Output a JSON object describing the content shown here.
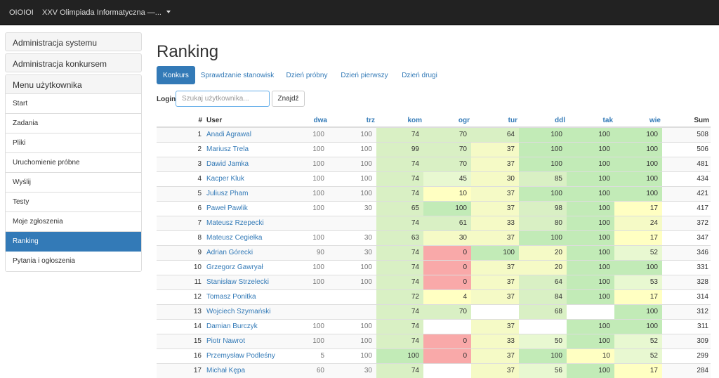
{
  "navbar": {
    "brand": "OIOIOI",
    "contest": "XXV Olimpiada Informatyczna —..."
  },
  "sidebar": {
    "admin_system": "Administracja systemu",
    "admin_contest": "Administracja konkursem",
    "user_menu_title": "Menu użytkownika",
    "items": [
      "Start",
      "Zadania",
      "Pliki",
      "Uruchomienie próbne",
      "Wyślij",
      "Testy",
      "Moje zgłoszenia",
      "Ranking",
      "Pytania i ogłoszenia"
    ],
    "active": "Ranking"
  },
  "main": {
    "title": "Ranking",
    "tabs": [
      "Konkurs",
      "Sprawdzanie stanowisk",
      "Dzień próbny",
      "Dzień pierwszy",
      "Dzień drugi"
    ],
    "active_tab": "Konkurs",
    "search": {
      "label": "Login",
      "placeholder": "Szukaj użytkownika...",
      "button": "Znajdź"
    }
  },
  "ranking": {
    "columns": [
      "#",
      "User",
      "dwa",
      "trz",
      "kom",
      "ogr",
      "tur",
      "ddl",
      "tak",
      "wie",
      "Sum"
    ],
    "rows": [
      {
        "pos": "1",
        "user": "Anadi Agrawal",
        "dwa": "100",
        "trz": "100",
        "kom": "74",
        "ogr": "70",
        "tur": "64",
        "ddl": "100",
        "tak": "100",
        "wie": "100",
        "sum": "508"
      },
      {
        "pos": "2",
        "user": "Mariusz Trela",
        "dwa": "100",
        "trz": "100",
        "kom": "99",
        "ogr": "70",
        "tur": "37",
        "ddl": "100",
        "tak": "100",
        "wie": "100",
        "sum": "506"
      },
      {
        "pos": "3",
        "user": "Dawid Jamka",
        "dwa": "100",
        "trz": "100",
        "kom": "74",
        "ogr": "70",
        "tur": "37",
        "ddl": "100",
        "tak": "100",
        "wie": "100",
        "sum": "481"
      },
      {
        "pos": "4",
        "user": "Kacper Kluk",
        "dwa": "100",
        "trz": "100",
        "kom": "74",
        "ogr": "45",
        "tur": "30",
        "ddl": "85",
        "tak": "100",
        "wie": "100",
        "sum": "434"
      },
      {
        "pos": "5",
        "user": "Juliusz Pham",
        "dwa": "100",
        "trz": "100",
        "kom": "74",
        "ogr": "10",
        "tur": "37",
        "ddl": "100",
        "tak": "100",
        "wie": "100",
        "sum": "421"
      },
      {
        "pos": "6",
        "user": "Paweł Pawlik",
        "dwa": "100",
        "trz": "30",
        "kom": "65",
        "ogr": "100",
        "tur": "37",
        "ddl": "98",
        "tak": "100",
        "wie": "17",
        "sum": "417"
      },
      {
        "pos": "7",
        "user": "Mateusz Rzepecki",
        "dwa": "",
        "trz": "",
        "kom": "74",
        "ogr": "61",
        "tur": "33",
        "ddl": "80",
        "tak": "100",
        "wie": "24",
        "sum": "372"
      },
      {
        "pos": "8",
        "user": "Mateusz Cegiełka",
        "dwa": "100",
        "trz": "30",
        "kom": "63",
        "ogr": "30",
        "tur": "37",
        "ddl": "100",
        "tak": "100",
        "wie": "17",
        "sum": "347"
      },
      {
        "pos": "9",
        "user": "Adrian Górecki",
        "dwa": "90",
        "trz": "30",
        "kom": "74",
        "ogr": "0",
        "tur": "100",
        "ddl": "20",
        "tak": "100",
        "wie": "52",
        "sum": "346"
      },
      {
        "pos": "10",
        "user": "Grzegorz Gawryał",
        "dwa": "100",
        "trz": "100",
        "kom": "74",
        "ogr": "0",
        "tur": "37",
        "ddl": "20",
        "tak": "100",
        "wie": "100",
        "sum": "331"
      },
      {
        "pos": "11",
        "user": "Stanisław Strzelecki",
        "dwa": "100",
        "trz": "100",
        "kom": "74",
        "ogr": "0",
        "tur": "37",
        "ddl": "64",
        "tak": "100",
        "wie": "53",
        "sum": "328"
      },
      {
        "pos": "12",
        "user": "Tomasz Ponitka",
        "dwa": "",
        "trz": "",
        "kom": "72",
        "ogr": "4",
        "tur": "37",
        "ddl": "84",
        "tak": "100",
        "wie": "17",
        "sum": "314"
      },
      {
        "pos": "13",
        "user": "Wojciech Szymański",
        "dwa": "",
        "trz": "",
        "kom": "74",
        "ogr": "70",
        "tur": "",
        "ddl": "68",
        "tak": "",
        "wie": "100",
        "sum": "312"
      },
      {
        "pos": "14",
        "user": "Damian Burczyk",
        "dwa": "100",
        "trz": "100",
        "kom": "74",
        "ogr": "",
        "tur": "37",
        "ddl": "",
        "tak": "100",
        "wie": "100",
        "sum": "311"
      },
      {
        "pos": "15",
        "user": "Piotr Nawrot",
        "dwa": "100",
        "trz": "100",
        "kom": "74",
        "ogr": "0",
        "tur": "33",
        "ddl": "50",
        "tak": "100",
        "wie": "52",
        "sum": "309"
      },
      {
        "pos": "16",
        "user": "Przemysław Podleśny",
        "dwa": "5",
        "trz": "100",
        "kom": "100",
        "ogr": "0",
        "tur": "37",
        "ddl": "100",
        "tak": "10",
        "wie": "52",
        "sum": "299"
      },
      {
        "pos": "17",
        "user": "Michał Kępa",
        "dwa": "60",
        "trz": "30",
        "kom": "74",
        "ogr": "",
        "tur": "37",
        "ddl": "56",
        "tak": "100",
        "wie": "17",
        "sum": "284"
      }
    ]
  },
  "colors": {
    "navbar_bg": "#222222",
    "primary": "#337ab7",
    "score_full": "#c2ebb7",
    "score_high": "#d9f0c4",
    "score_mid": "#e8f8d1",
    "score_low": "#ffffc2",
    "score_zero": "#f9a9a9"
  }
}
